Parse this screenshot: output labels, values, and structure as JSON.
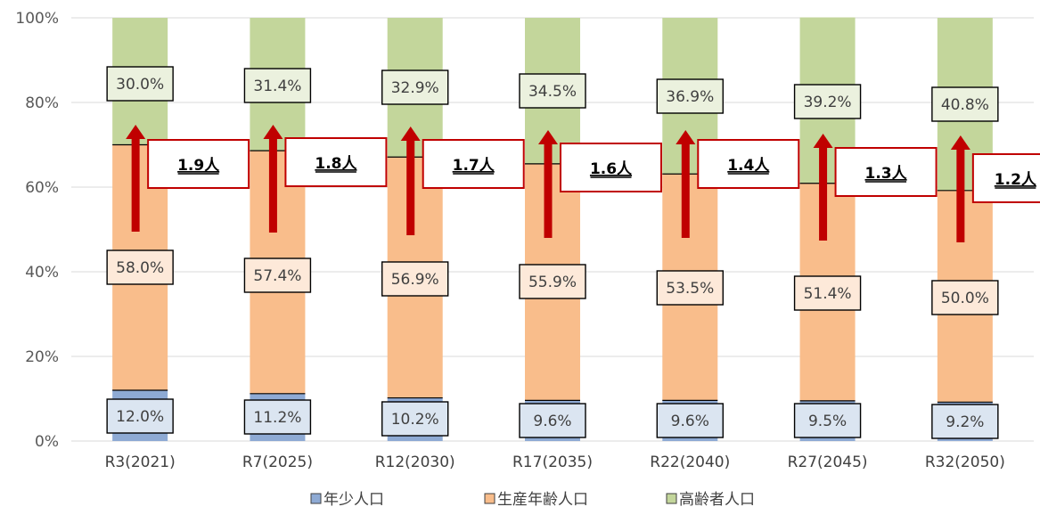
{
  "chart_data": {
    "type": "bar",
    "stacked": true,
    "categories": [
      "R3(2021)",
      "R7(2025)",
      "R12(2030)",
      "R17(2035)",
      "R22(2040)",
      "R27(2045)",
      "R32(2050)"
    ],
    "series": [
      {
        "name": "年少人口",
        "color": "#8eaad4",
        "label_fill": "#dbe5f1",
        "values": [
          12.0,
          11.2,
          10.2,
          9.6,
          9.6,
          9.5,
          9.2
        ]
      },
      {
        "name": "生産年齢人口",
        "color": "#f9bd8b",
        "label_fill": "#fde9d9",
        "values": [
          58.0,
          57.4,
          56.9,
          55.9,
          53.5,
          51.4,
          50.0
        ]
      },
      {
        "name": "高齢者人口",
        "color": "#c3d69b",
        "label_fill": "#ebf1de",
        "values": [
          30.0,
          31.4,
          32.9,
          34.5,
          36.9,
          39.2,
          40.8
        ]
      }
    ],
    "value_labels": [
      [
        "12.0%",
        "11.2%",
        "10.2%",
        "9.6%",
        "9.6%",
        "9.5%",
        "9.2%"
      ],
      [
        "58.0%",
        "57.4%",
        "56.9%",
        "55.9%",
        "53.5%",
        "51.4%",
        "50.0%"
      ],
      [
        "30.0%",
        "31.4%",
        "32.9%",
        "34.5%",
        "36.9%",
        "39.2%",
        "40.8%"
      ]
    ],
    "ratio_labels": [
      "1.9人",
      "1.8人",
      "1.7人",
      "1.6人",
      "1.4人",
      "1.3人",
      "1.2人"
    ],
    "ylim": [
      0,
      100
    ],
    "yticks": [
      0,
      20,
      40,
      60,
      80,
      100
    ],
    "ytick_labels": [
      "0%",
      "20%",
      "40%",
      "60%",
      "80%",
      "100%"
    ],
    "grid": true,
    "legend_position": "bottom",
    "annotation_color": "#c00000"
  }
}
